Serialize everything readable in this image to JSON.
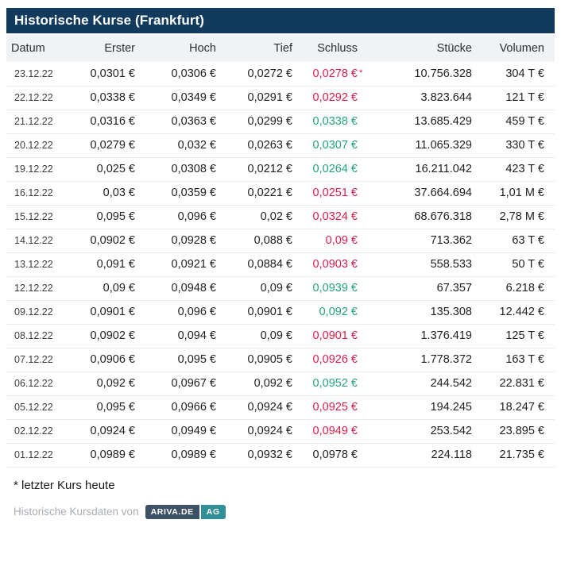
{
  "title": "Historische Kurse (Frankfurt)",
  "colors": {
    "title_bar": "#123a5c",
    "header_bg": "#f0f2f4",
    "positive": "#23a478",
    "negative": "#dc1c4a",
    "badge_left": "#3d5266",
    "badge_right": "#2f909a"
  },
  "table": {
    "headers": [
      "Datum",
      "Erster",
      "Hoch",
      "Tief",
      "Schluss",
      "Stücke",
      "Volumen"
    ],
    "rows": [
      {
        "datum": "23.12.22",
        "erster": "0,0301 €",
        "hoch": "0,0306 €",
        "tief": "0,0272 €",
        "schluss": "0,0278 €",
        "trend": "down",
        "asterisk": "*",
        "stuecke": "10.756.328",
        "volumen": "304 T €"
      },
      {
        "datum": "22.12.22",
        "erster": "0,0338 €",
        "hoch": "0,0349 €",
        "tief": "0,0291 €",
        "schluss": "0,0292 €",
        "trend": "down",
        "asterisk": "",
        "stuecke": "3.823.644",
        "volumen": "121 T €"
      },
      {
        "datum": "21.12.22",
        "erster": "0,0316 €",
        "hoch": "0,0363 €",
        "tief": "0,0299 €",
        "schluss": "0,0338 €",
        "trend": "up",
        "asterisk": "",
        "stuecke": "13.685.429",
        "volumen": "459 T €"
      },
      {
        "datum": "20.12.22",
        "erster": "0,0279 €",
        "hoch": "0,032 €",
        "tief": "0,0263 €",
        "schluss": "0,0307 €",
        "trend": "up",
        "asterisk": "",
        "stuecke": "11.065.329",
        "volumen": "330 T €"
      },
      {
        "datum": "19.12.22",
        "erster": "0,025 €",
        "hoch": "0,0308 €",
        "tief": "0,0212 €",
        "schluss": "0,0264 €",
        "trend": "up",
        "asterisk": "",
        "stuecke": "16.211.042",
        "volumen": "423 T €"
      },
      {
        "datum": "16.12.22",
        "erster": "0,03 €",
        "hoch": "0,0359 €",
        "tief": "0,0221 €",
        "schluss": "0,0251 €",
        "trend": "down",
        "asterisk": "",
        "stuecke": "37.664.694",
        "volumen": "1,01 M €"
      },
      {
        "datum": "15.12.22",
        "erster": "0,095 €",
        "hoch": "0,096 €",
        "tief": "0,02 €",
        "schluss": "0,0324 €",
        "trend": "down",
        "asterisk": "",
        "stuecke": "68.676.318",
        "volumen": "2,78 M €"
      },
      {
        "datum": "14.12.22",
        "erster": "0,0902 €",
        "hoch": "0,0928 €",
        "tief": "0,088 €",
        "schluss": "0,09 €",
        "trend": "down",
        "asterisk": "",
        "stuecke": "713.362",
        "volumen": "63 T €"
      },
      {
        "datum": "13.12.22",
        "erster": "0,091 €",
        "hoch": "0,0921 €",
        "tief": "0,0884 €",
        "schluss": "0,0903 €",
        "trend": "down",
        "asterisk": "",
        "stuecke": "558.533",
        "volumen": "50 T €"
      },
      {
        "datum": "12.12.22",
        "erster": "0,09 €",
        "hoch": "0,0948 €",
        "tief": "0,09 €",
        "schluss": "0,0939 €",
        "trend": "up",
        "asterisk": "",
        "stuecke": "67.357",
        "volumen": "6.218 €"
      },
      {
        "datum": "09.12.22",
        "erster": "0,0901 €",
        "hoch": "0,096 €",
        "tief": "0,0901 €",
        "schluss": "0,092 €",
        "trend": "up",
        "asterisk": "",
        "stuecke": "135.308",
        "volumen": "12.442 €"
      },
      {
        "datum": "08.12.22",
        "erster": "0,0902 €",
        "hoch": "0,094 €",
        "tief": "0,09 €",
        "schluss": "0,0901 €",
        "trend": "down",
        "asterisk": "",
        "stuecke": "1.376.419",
        "volumen": "125 T €"
      },
      {
        "datum": "07.12.22",
        "erster": "0,0906 €",
        "hoch": "0,095 €",
        "tief": "0,0905 €",
        "schluss": "0,0926 €",
        "trend": "down",
        "asterisk": "",
        "stuecke": "1.778.372",
        "volumen": "163 T €"
      },
      {
        "datum": "06.12.22",
        "erster": "0,092 €",
        "hoch": "0,0967 €",
        "tief": "0,092 €",
        "schluss": "0,0952 €",
        "trend": "up",
        "asterisk": "",
        "stuecke": "244.542",
        "volumen": "22.831 €"
      },
      {
        "datum": "05.12.22",
        "erster": "0,095 €",
        "hoch": "0,0966 €",
        "tief": "0,0924 €",
        "schluss": "0,0925 €",
        "trend": "down",
        "asterisk": "",
        "stuecke": "194.245",
        "volumen": "18.247 €"
      },
      {
        "datum": "02.12.22",
        "erster": "0,0924 €",
        "hoch": "0,0949 €",
        "tief": "0,0924 €",
        "schluss": "0,0949 €",
        "trend": "down",
        "asterisk": "",
        "stuecke": "253.542",
        "volumen": "23.895 €"
      },
      {
        "datum": "01.12.22",
        "erster": "0,0989 €",
        "hoch": "0,0989 €",
        "tief": "0,0932 €",
        "schluss": "0,0978 €",
        "trend": "neutral",
        "asterisk": "",
        "stuecke": "224.118",
        "volumen": "21.735 €"
      }
    ]
  },
  "footnote": "* letzter Kurs heute",
  "footer": {
    "text": "Historische Kursdaten von",
    "badge_primary": "ARIVA.DE",
    "badge_secondary": "AG"
  }
}
